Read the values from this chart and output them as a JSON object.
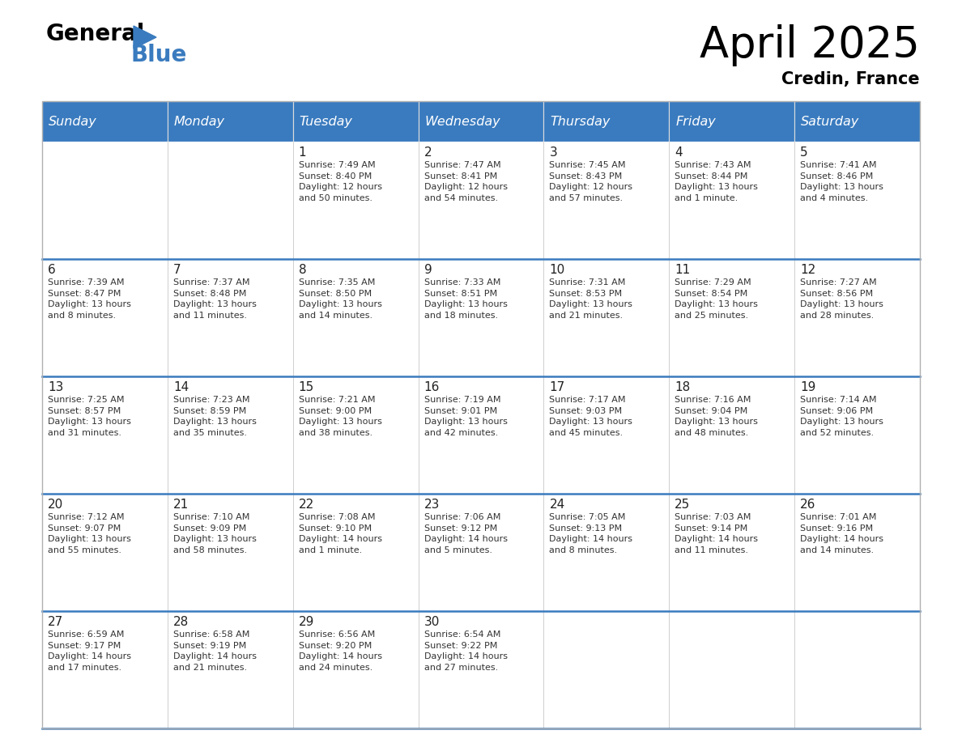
{
  "title": "April 2025",
  "subtitle": "Credin, France",
  "days_of_week": [
    "Sunday",
    "Monday",
    "Tuesday",
    "Wednesday",
    "Thursday",
    "Friday",
    "Saturday"
  ],
  "header_bg": "#3a7bbf",
  "header_text": "#ffffff",
  "row_line_color": "#3a7bbf",
  "text_color": "#333333",
  "date_color": "#222222",
  "weeks": [
    [
      {
        "day": "",
        "info": ""
      },
      {
        "day": "",
        "info": ""
      },
      {
        "day": "1",
        "info": "Sunrise: 7:49 AM\nSunset: 8:40 PM\nDaylight: 12 hours\nand 50 minutes."
      },
      {
        "day": "2",
        "info": "Sunrise: 7:47 AM\nSunset: 8:41 PM\nDaylight: 12 hours\nand 54 minutes."
      },
      {
        "day": "3",
        "info": "Sunrise: 7:45 AM\nSunset: 8:43 PM\nDaylight: 12 hours\nand 57 minutes."
      },
      {
        "day": "4",
        "info": "Sunrise: 7:43 AM\nSunset: 8:44 PM\nDaylight: 13 hours\nand 1 minute."
      },
      {
        "day": "5",
        "info": "Sunrise: 7:41 AM\nSunset: 8:46 PM\nDaylight: 13 hours\nand 4 minutes."
      }
    ],
    [
      {
        "day": "6",
        "info": "Sunrise: 7:39 AM\nSunset: 8:47 PM\nDaylight: 13 hours\nand 8 minutes."
      },
      {
        "day": "7",
        "info": "Sunrise: 7:37 AM\nSunset: 8:48 PM\nDaylight: 13 hours\nand 11 minutes."
      },
      {
        "day": "8",
        "info": "Sunrise: 7:35 AM\nSunset: 8:50 PM\nDaylight: 13 hours\nand 14 minutes."
      },
      {
        "day": "9",
        "info": "Sunrise: 7:33 AM\nSunset: 8:51 PM\nDaylight: 13 hours\nand 18 minutes."
      },
      {
        "day": "10",
        "info": "Sunrise: 7:31 AM\nSunset: 8:53 PM\nDaylight: 13 hours\nand 21 minutes."
      },
      {
        "day": "11",
        "info": "Sunrise: 7:29 AM\nSunset: 8:54 PM\nDaylight: 13 hours\nand 25 minutes."
      },
      {
        "day": "12",
        "info": "Sunrise: 7:27 AM\nSunset: 8:56 PM\nDaylight: 13 hours\nand 28 minutes."
      }
    ],
    [
      {
        "day": "13",
        "info": "Sunrise: 7:25 AM\nSunset: 8:57 PM\nDaylight: 13 hours\nand 31 minutes."
      },
      {
        "day": "14",
        "info": "Sunrise: 7:23 AM\nSunset: 8:59 PM\nDaylight: 13 hours\nand 35 minutes."
      },
      {
        "day": "15",
        "info": "Sunrise: 7:21 AM\nSunset: 9:00 PM\nDaylight: 13 hours\nand 38 minutes."
      },
      {
        "day": "16",
        "info": "Sunrise: 7:19 AM\nSunset: 9:01 PM\nDaylight: 13 hours\nand 42 minutes."
      },
      {
        "day": "17",
        "info": "Sunrise: 7:17 AM\nSunset: 9:03 PM\nDaylight: 13 hours\nand 45 minutes."
      },
      {
        "day": "18",
        "info": "Sunrise: 7:16 AM\nSunset: 9:04 PM\nDaylight: 13 hours\nand 48 minutes."
      },
      {
        "day": "19",
        "info": "Sunrise: 7:14 AM\nSunset: 9:06 PM\nDaylight: 13 hours\nand 52 minutes."
      }
    ],
    [
      {
        "day": "20",
        "info": "Sunrise: 7:12 AM\nSunset: 9:07 PM\nDaylight: 13 hours\nand 55 minutes."
      },
      {
        "day": "21",
        "info": "Sunrise: 7:10 AM\nSunset: 9:09 PM\nDaylight: 13 hours\nand 58 minutes."
      },
      {
        "day": "22",
        "info": "Sunrise: 7:08 AM\nSunset: 9:10 PM\nDaylight: 14 hours\nand 1 minute."
      },
      {
        "day": "23",
        "info": "Sunrise: 7:06 AM\nSunset: 9:12 PM\nDaylight: 14 hours\nand 5 minutes."
      },
      {
        "day": "24",
        "info": "Sunrise: 7:05 AM\nSunset: 9:13 PM\nDaylight: 14 hours\nand 8 minutes."
      },
      {
        "day": "25",
        "info": "Sunrise: 7:03 AM\nSunset: 9:14 PM\nDaylight: 14 hours\nand 11 minutes."
      },
      {
        "day": "26",
        "info": "Sunrise: 7:01 AM\nSunset: 9:16 PM\nDaylight: 14 hours\nand 14 minutes."
      }
    ],
    [
      {
        "day": "27",
        "info": "Sunrise: 6:59 AM\nSunset: 9:17 PM\nDaylight: 14 hours\nand 17 minutes."
      },
      {
        "day": "28",
        "info": "Sunrise: 6:58 AM\nSunset: 9:19 PM\nDaylight: 14 hours\nand 21 minutes."
      },
      {
        "day": "29",
        "info": "Sunrise: 6:56 AM\nSunset: 9:20 PM\nDaylight: 14 hours\nand 24 minutes."
      },
      {
        "day": "30",
        "info": "Sunrise: 6:54 AM\nSunset: 9:22 PM\nDaylight: 14 hours\nand 27 minutes."
      },
      {
        "day": "",
        "info": ""
      },
      {
        "day": "",
        "info": ""
      },
      {
        "day": "",
        "info": ""
      }
    ]
  ]
}
